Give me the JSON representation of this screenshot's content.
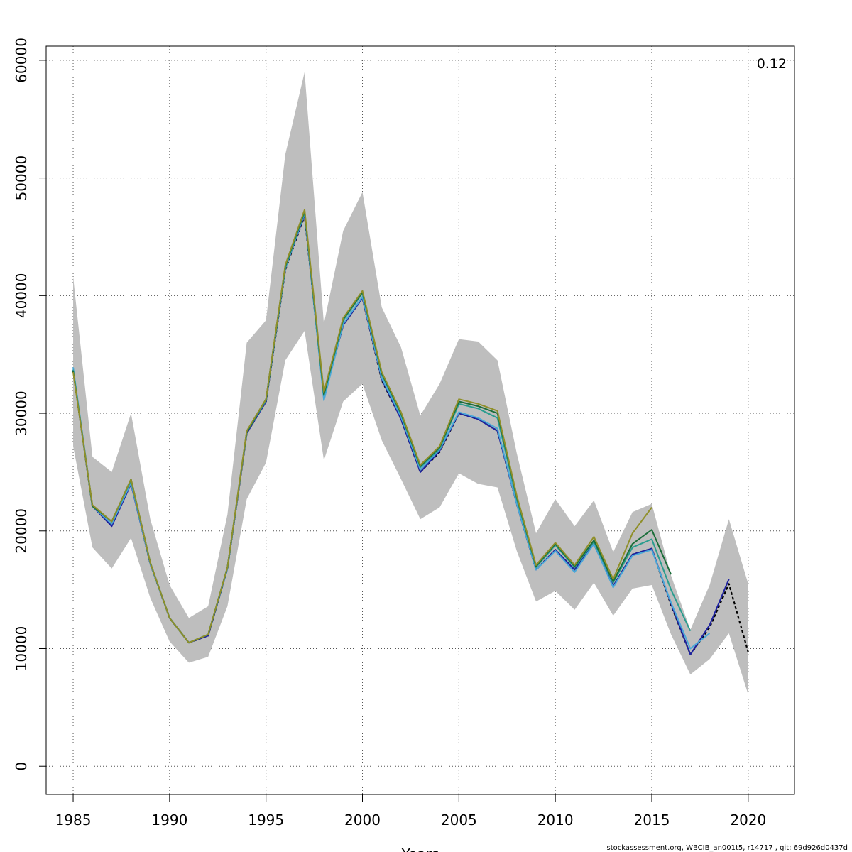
{
  "chart_data": {
    "type": "line",
    "title": "",
    "xlabel": "Years",
    "ylabel": "",
    "xlim": [
      1983.6,
      2022.4
    ],
    "ylim": [
      -2400,
      61200
    ],
    "grid": true,
    "x_ticks": [
      1985,
      1990,
      1995,
      2000,
      2005,
      2010,
      2015,
      2020
    ],
    "x_tick_labels": [
      "1985",
      "1990",
      "1995",
      "2000",
      "2005",
      "2010",
      "2015",
      "2020"
    ],
    "y_ticks": [
      0,
      10000,
      20000,
      30000,
      40000,
      50000,
      60000
    ],
    "y_tick_labels": [
      "0",
      "10000",
      "20000",
      "30000",
      "40000",
      "50000",
      "60000"
    ],
    "corner_label": "0.12",
    "footer_text": "stockassessment.org, WBCIB_an001t5, r14717 , git: 69d926d0437d",
    "band": {
      "color": "#bebebe",
      "x": [
        1985,
        1986,
        1987,
        1988,
        1989,
        1990,
        1991,
        1992,
        1993,
        1994,
        1995,
        1996,
        1997,
        1998,
        1999,
        2000,
        2001,
        2002,
        2003,
        2004,
        2005,
        2006,
        2007,
        2008,
        2009,
        2010,
        2011,
        2012,
        2013,
        2014,
        2015,
        2016,
        2017,
        2018,
        2019,
        2020
      ],
      "upper": [
        41600,
        26300,
        25000,
        30000,
        21000,
        15400,
        12600,
        13600,
        21400,
        36000,
        37900,
        52000,
        59000,
        37600,
        45500,
        48800,
        39000,
        35600,
        29800,
        32500,
        36300,
        36100,
        34500,
        26600,
        19800,
        22700,
        20400,
        22600,
        18200,
        21600,
        22300,
        16200,
        11600,
        15400,
        21000,
        15500
      ],
      "lower": [
        27200,
        18600,
        16800,
        19400,
        14300,
        10600,
        8800,
        9300,
        13600,
        22700,
        25800,
        34500,
        37000,
        26000,
        31000,
        32500,
        27700,
        24400,
        21000,
        22000,
        24900,
        24000,
        23700,
        18300,
        14000,
        14900,
        13300,
        15600,
        12800,
        15100,
        15400,
        11200,
        7800,
        9100,
        11300,
        6100
      ]
    },
    "series": [
      {
        "color": "#000000",
        "dashed": true,
        "x": [
          1985,
          1986,
          1987,
          1988,
          1989,
          1990,
          1991,
          1992,
          1993,
          1994,
          1995,
          1996,
          1997,
          1998,
          1999,
          2000,
          2001,
          2002,
          2003,
          2004,
          2005,
          2006,
          2007,
          2008,
          2009,
          2010,
          2011,
          2012,
          2013,
          2014,
          2015,
          2016,
          2017,
          2018,
          2019,
          2020
        ],
        "values": [
          33600,
          22100,
          20500,
          24100,
          17200,
          12600,
          10500,
          11100,
          16800,
          28300,
          31000,
          42200,
          46800,
          31400,
          37500,
          39800,
          32800,
          29500,
          25000,
          26700,
          30000,
          29500,
          28500,
          22300,
          16700,
          18400,
          16700,
          18900,
          15300,
          18000,
          18500,
          13700,
          9500,
          11800,
          15500,
          9700
        ]
      },
      {
        "color": "#1e22a0",
        "x": [
          1985,
          1986,
          1987,
          1988,
          1989,
          1990,
          1991,
          1992,
          1993,
          1994,
          1995,
          1996,
          1997,
          1998,
          1999,
          2000,
          2001,
          2002,
          2003,
          2004,
          2005,
          2006,
          2007,
          2008,
          2009,
          2010,
          2011,
          2012,
          2013,
          2014,
          2015,
          2016,
          2017,
          2018,
          2019
        ],
        "values": [
          33700,
          22100,
          20400,
          24000,
          17200,
          12600,
          10500,
          11100,
          16800,
          28300,
          31000,
          42300,
          46900,
          31300,
          37500,
          39800,
          32900,
          29500,
          25000,
          26800,
          30000,
          29500,
          28500,
          22300,
          16700,
          18400,
          16700,
          18900,
          15300,
          18000,
          18500,
          13800,
          9500,
          12000,
          15900
        ]
      },
      {
        "color": "#4aa8d8",
        "x": [
          1985,
          1986,
          1987,
          1988,
          1989,
          1990,
          1991,
          1992,
          1993,
          1994,
          1995,
          1996,
          1997,
          1998,
          1999,
          2000,
          2001,
          2002,
          2003,
          2004,
          2005,
          2006,
          2007,
          2008,
          2009,
          2010,
          2011,
          2012,
          2013,
          2014,
          2015,
          2016,
          2017,
          2018
        ],
        "values": [
          33900,
          22100,
          20600,
          24100,
          17200,
          12600,
          10500,
          11200,
          16800,
          28400,
          31100,
          42300,
          47000,
          31100,
          37600,
          39900,
          33000,
          29700,
          25200,
          26900,
          30100,
          29600,
          28700,
          22300,
          16700,
          18300,
          16500,
          18900,
          15200,
          17900,
          18400,
          13900,
          10000,
          11300
        ]
      },
      {
        "color": "#2a9d8f",
        "x": [
          1985,
          1986,
          1987,
          1988,
          1989,
          1990,
          1991,
          1992,
          1993,
          1994,
          1995,
          1996,
          1997,
          1998,
          1999,
          2000,
          2001,
          2002,
          2003,
          2004,
          2005,
          2006,
          2007,
          2008,
          2009,
          2010,
          2011,
          2012,
          2013,
          2014,
          2015,
          2016,
          2017
        ],
        "values": [
          33700,
          22100,
          20800,
          24300,
          17300,
          12600,
          10500,
          11200,
          16900,
          28400,
          31100,
          42400,
          47100,
          31500,
          37900,
          40200,
          33300,
          29900,
          25400,
          27000,
          30800,
          30400,
          29600,
          22700,
          16900,
          18800,
          16900,
          19100,
          15600,
          18600,
          19300,
          15000,
          11500
        ]
      },
      {
        "color": "#1b6e3a",
        "x": [
          1985,
          1986,
          1987,
          1988,
          1989,
          1990,
          1991,
          1992,
          1993,
          1994,
          1995,
          1996,
          1997,
          1998,
          1999,
          2000,
          2001,
          2002,
          2003,
          2004,
          2005,
          2006,
          2007,
          2008,
          2009,
          2010,
          2011,
          2012,
          2013,
          2014,
          2015,
          2016
        ],
        "values": [
          33600,
          22100,
          20800,
          24400,
          17300,
          12600,
          10500,
          11200,
          16900,
          28400,
          31200,
          42500,
          47200,
          31600,
          38000,
          40300,
          33400,
          30000,
          25500,
          27100,
          31000,
          30600,
          30000,
          22900,
          17000,
          18900,
          17000,
          19200,
          15700,
          18900,
          20100,
          16300
        ]
      },
      {
        "color": "#8f8f2a",
        "x": [
          1985,
          1986,
          1987,
          1988,
          1989,
          1990,
          1991,
          1992,
          1993,
          1994,
          1995,
          1996,
          1997,
          1998,
          1999,
          2000,
          2001,
          2002,
          2003,
          2004,
          2005,
          2006,
          2007,
          2008,
          2009,
          2010,
          2011,
          2012,
          2013,
          2014,
          2015
        ],
        "values": [
          33500,
          22200,
          20800,
          24400,
          17300,
          12600,
          10500,
          11200,
          16900,
          28500,
          31200,
          42600,
          47300,
          31800,
          38100,
          40400,
          33500,
          30100,
          25600,
          27200,
          31200,
          30800,
          30200,
          23000,
          17100,
          19000,
          17100,
          19500,
          15900,
          19800,
          22000
        ]
      }
    ]
  }
}
